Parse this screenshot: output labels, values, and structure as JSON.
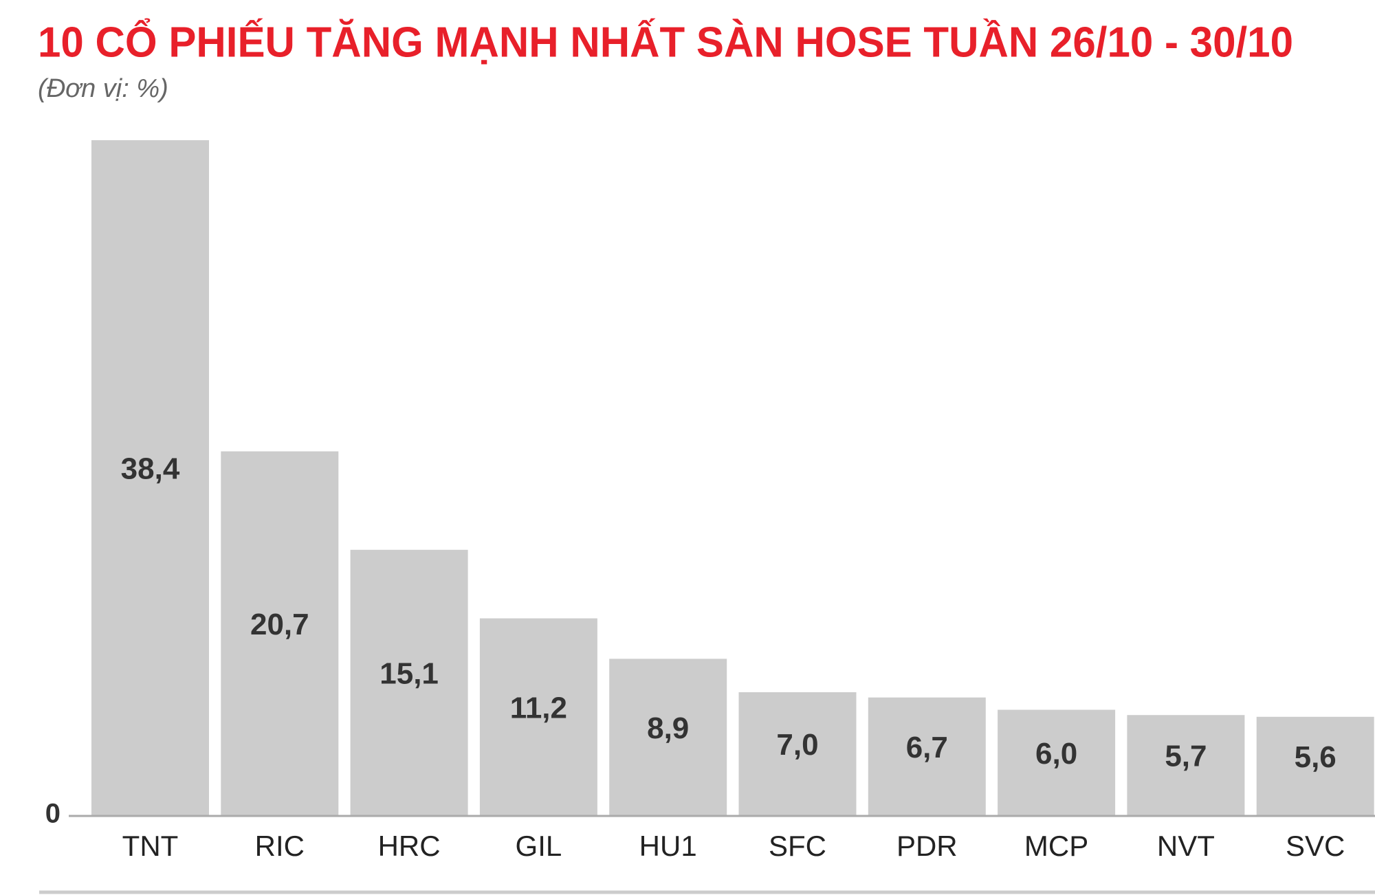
{
  "chart_data": {
    "type": "bar",
    "title": "10 CỔ PHIẾU TĂNG MẠNH NHẤT SÀN HOSE TUẦN 26/10 - 30/10",
    "subtitle": "(Đơn vị: %)",
    "categories": [
      "TNT",
      "RIC",
      "HRC",
      "GIL",
      "HU1",
      "SFC",
      "PDR",
      "MCP",
      "NVT",
      "SVC"
    ],
    "values": [
      38.4,
      20.7,
      15.1,
      11.2,
      8.9,
      7.0,
      6.7,
      6.0,
      5.7,
      5.6
    ],
    "value_labels": [
      "38,4",
      "20,7",
      "15,1",
      "11,2",
      "8,9",
      "7,0",
      "6,7",
      "6,0",
      "5,7",
      "5,6"
    ],
    "color": "#cccccc",
    "ylim": [
      0,
      40
    ],
    "yticks": [
      0
    ],
    "grid": false
  }
}
